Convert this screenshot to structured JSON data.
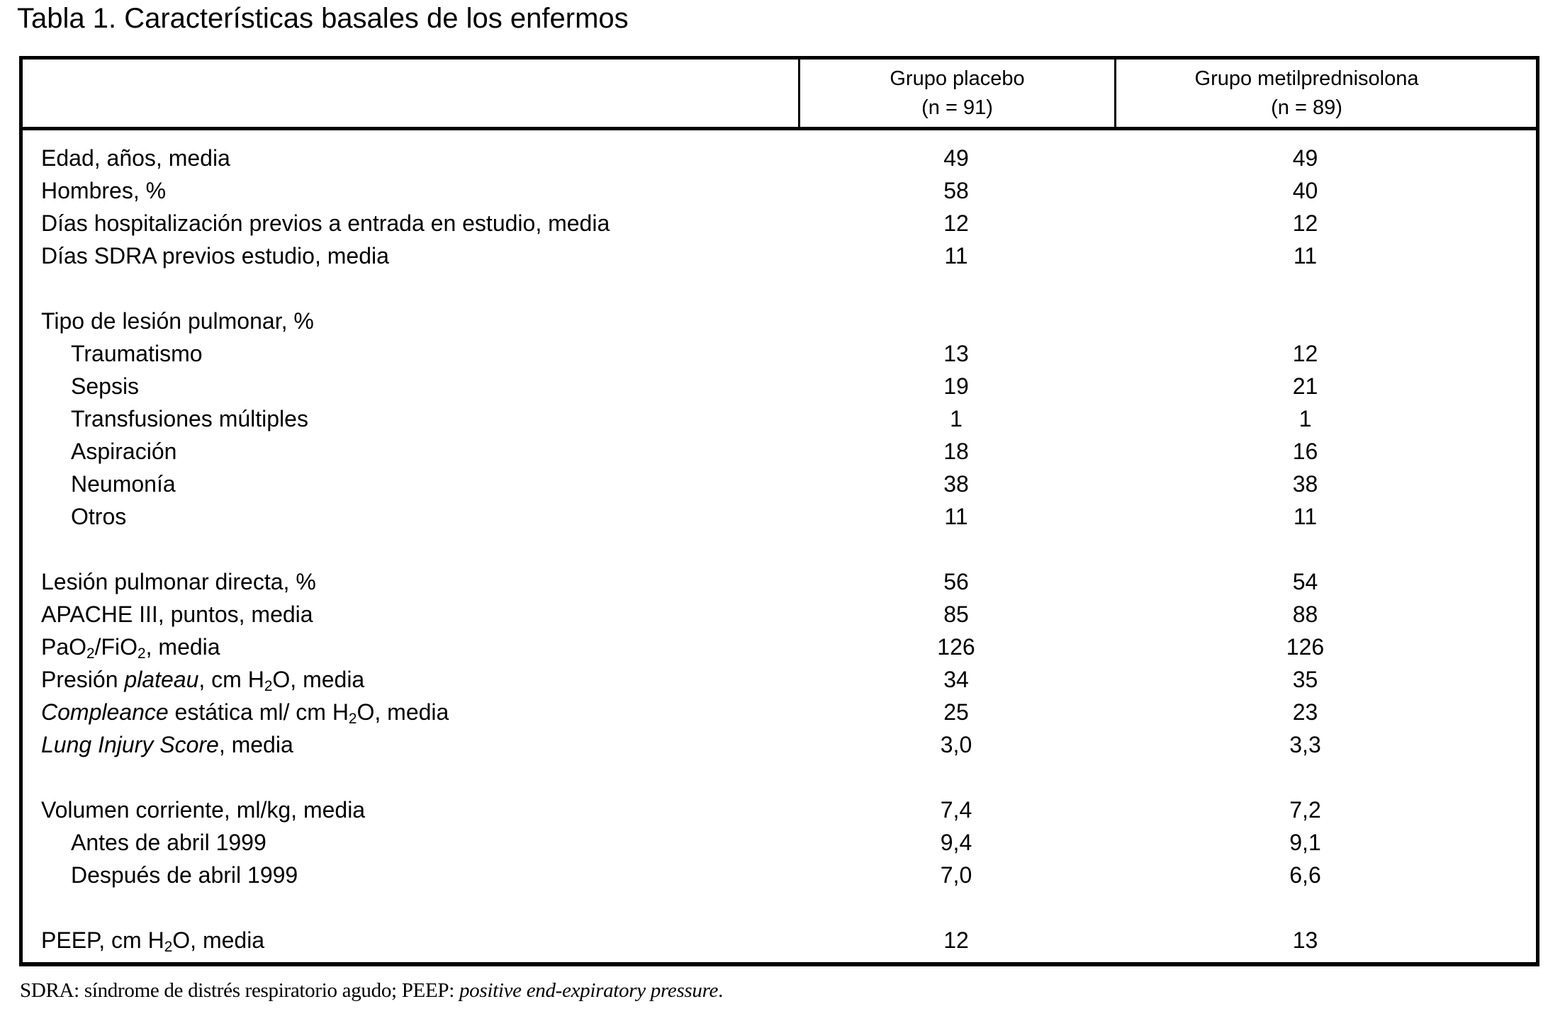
{
  "title": "Tabla 1. Características basales de los enfermos",
  "table": {
    "columns": [
      {
        "label_line1": "Grupo placebo",
        "label_line2": "(n = 91)"
      },
      {
        "label_line1": "Grupo metilprednisolona",
        "label_line2": "(n = 89)"
      }
    ],
    "rows": [
      {
        "type": "data",
        "indent": 0,
        "parts": [
          {
            "text": "Edad, años, media"
          }
        ],
        "values": [
          "49",
          "49"
        ]
      },
      {
        "type": "data",
        "indent": 0,
        "parts": [
          {
            "text": "Hombres, %"
          }
        ],
        "values": [
          "58",
          "40"
        ]
      },
      {
        "type": "data",
        "indent": 0,
        "parts": [
          {
            "text": "Días hospitalización previos a entrada en estudio, media"
          }
        ],
        "values": [
          "12",
          "12"
        ]
      },
      {
        "type": "data",
        "indent": 0,
        "parts": [
          {
            "text": "Días SDRA previos estudio, media"
          }
        ],
        "values": [
          "11",
          "11"
        ]
      },
      {
        "type": "spacer"
      },
      {
        "type": "data",
        "indent": 0,
        "parts": [
          {
            "text": "Tipo de lesión pulmonar, %"
          }
        ],
        "values": [
          "",
          ""
        ]
      },
      {
        "type": "data",
        "indent": 1,
        "parts": [
          {
            "text": "Traumatismo"
          }
        ],
        "values": [
          "13",
          "12"
        ]
      },
      {
        "type": "data",
        "indent": 1,
        "parts": [
          {
            "text": "Sepsis"
          }
        ],
        "values": [
          "19",
          "21"
        ]
      },
      {
        "type": "data",
        "indent": 1,
        "parts": [
          {
            "text": "Transfusiones múltiples"
          }
        ],
        "values": [
          "1",
          "1"
        ]
      },
      {
        "type": "data",
        "indent": 1,
        "parts": [
          {
            "text": "Aspiración"
          }
        ],
        "values": [
          "18",
          "16"
        ]
      },
      {
        "type": "data",
        "indent": 1,
        "parts": [
          {
            "text": "Neumonía"
          }
        ],
        "values": [
          "38",
          "38"
        ]
      },
      {
        "type": "data",
        "indent": 1,
        "parts": [
          {
            "text": "Otros"
          }
        ],
        "values": [
          "11",
          "11"
        ]
      },
      {
        "type": "spacer"
      },
      {
        "type": "data",
        "indent": 0,
        "parts": [
          {
            "text": "Lesión pulmonar directa, %"
          }
        ],
        "values": [
          "56",
          "54"
        ]
      },
      {
        "type": "data",
        "indent": 0,
        "parts": [
          {
            "text": "APACHE III, puntos, media"
          }
        ],
        "values": [
          "85",
          "88"
        ]
      },
      {
        "type": "data",
        "indent": 0,
        "parts": [
          {
            "text": "PaO"
          },
          {
            "text": "2",
            "sub": true
          },
          {
            "text": "/FiO"
          },
          {
            "text": "2",
            "sub": true
          },
          {
            "text": ", media"
          }
        ],
        "values": [
          "126",
          "126"
        ]
      },
      {
        "type": "data",
        "indent": 0,
        "parts": [
          {
            "text": "Presión "
          },
          {
            "text": "plateau",
            "italic": true
          },
          {
            "text": ", cm H"
          },
          {
            "text": "2",
            "sub": true
          },
          {
            "text": "O, media"
          }
        ],
        "values": [
          "34",
          "35"
        ]
      },
      {
        "type": "data",
        "indent": 0,
        "parts": [
          {
            "text": "Compleance",
            "italic": true
          },
          {
            "text": " estática ml/ cm H"
          },
          {
            "text": "2",
            "sub": true
          },
          {
            "text": "O, media"
          }
        ],
        "values": [
          "25",
          "23"
        ]
      },
      {
        "type": "data",
        "indent": 0,
        "parts": [
          {
            "text": "Lung Injury Score",
            "italic": true
          },
          {
            "text": ", media"
          }
        ],
        "values": [
          "3,0",
          "3,3"
        ]
      },
      {
        "type": "spacer"
      },
      {
        "type": "data",
        "indent": 0,
        "parts": [
          {
            "text": "Volumen corriente, ml/kg, media"
          }
        ],
        "values": [
          "7,4",
          "7,2"
        ]
      },
      {
        "type": "data",
        "indent": 1,
        "parts": [
          {
            "text": "Antes de abril 1999"
          }
        ],
        "values": [
          "9,4",
          "9,1"
        ]
      },
      {
        "type": "data",
        "indent": 1,
        "parts": [
          {
            "text": "Después de abril 1999"
          }
        ],
        "values": [
          "7,0",
          "6,6"
        ]
      },
      {
        "type": "spacer"
      },
      {
        "type": "data",
        "indent": 0,
        "parts": [
          {
            "text": "PEEP, cm H"
          },
          {
            "text": "2",
            "sub": true
          },
          {
            "text": "O, media"
          }
        ],
        "values": [
          "12",
          "13"
        ]
      }
    ]
  },
  "footnote": {
    "parts": [
      {
        "text": "SDRA: síndrome de distrés respiratorio agudo; PEEP: "
      },
      {
        "text": "positive end-expiratory pressure",
        "italic": true
      },
      {
        "text": "."
      }
    ]
  }
}
